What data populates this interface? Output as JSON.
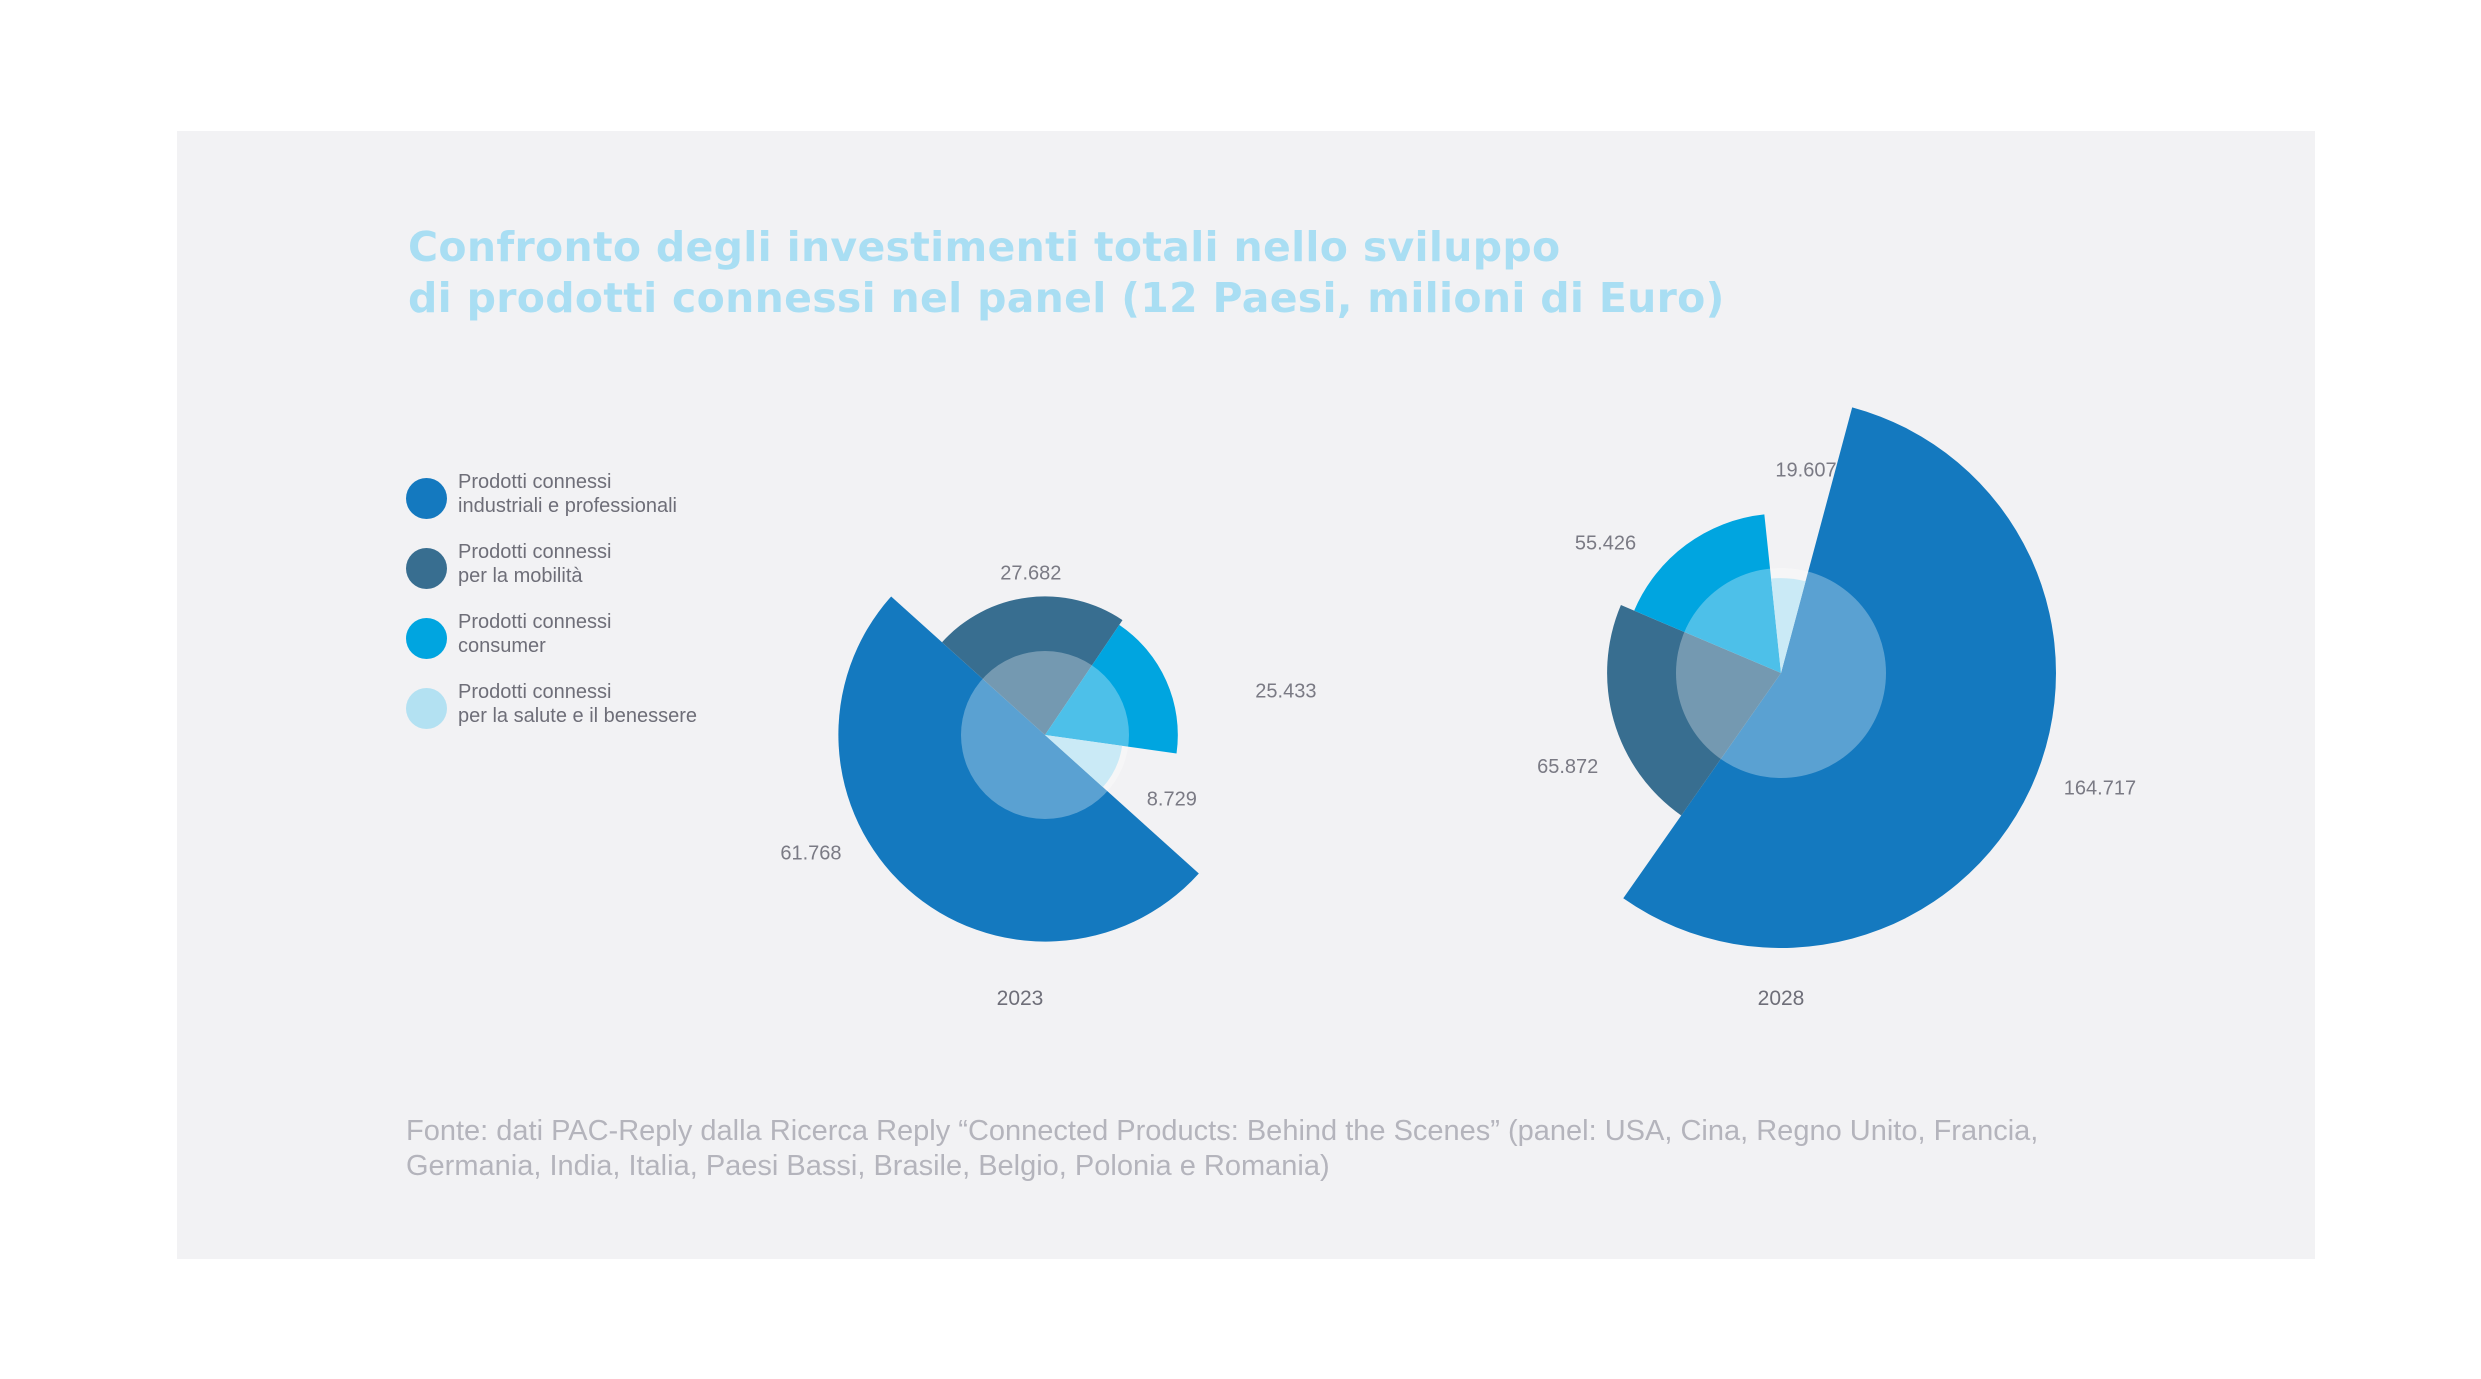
{
  "title": {
    "line1": "Confronto degli investimenti totali nello sviluppo",
    "line2": "di prodotti connessi nel panel (12 Paesi, milioni di Euro)"
  },
  "legend": [
    {
      "line1": "Prodotti connessi",
      "line2": "industriali e professionali",
      "color": "#1479bf"
    },
    {
      "line1": "Prodotti connessi",
      "line2": "per la mobilità",
      "color": "#386e90"
    },
    {
      "line1": "Prodotti connessi",
      "line2": "consumer",
      "color": "#00a5e0"
    },
    {
      "line1": "Prodotti connessi",
      "line2": "per la salute e il benessere",
      "color": "#b3e1f2"
    }
  ],
  "chart_data": [
    {
      "type": "pie",
      "subtype": "polar-area",
      "label": "2023",
      "categories": [
        "Prodotti connessi industriali e professionali",
        "Prodotti connessi per la mobilità",
        "Prodotti connessi consumer",
        "Prodotti connessi per la salute e il benessere"
      ],
      "values": [
        61768,
        27682,
        25433,
        8729
      ],
      "value_labels": [
        "61.768",
        "27.682",
        "25.433",
        "8.729"
      ],
      "colors": [
        "#1479bf",
        "#386e90",
        "#00a5e0",
        "#b3e1f2"
      ]
    },
    {
      "type": "pie",
      "subtype": "polar-area",
      "label": "2028",
      "categories": [
        "Prodotti connessi industriali e professionali",
        "Prodotti connessi per la mobilità",
        "Prodotti connessi consumer",
        "Prodotti connessi per la salute e il benessere"
      ],
      "values": [
        164717,
        65872,
        55426,
        19607
      ],
      "value_labels": [
        "164.717",
        "65.872",
        "55.426",
        "19.607"
      ],
      "colors": [
        "#1479bf",
        "#386e90",
        "#00a5e0",
        "#b3e1f2"
      ]
    }
  ],
  "source": {
    "line1": "Fonte: dati PAC-Reply dalla Ricerca Reply “Connected Products: Behind the Scenes” (panel: USA, Cina, Regno Unito, Francia,",
    "line2": "Germania, India, Italia, Paesi Bassi, Brasile, Belgio, Polonia e Romania)"
  }
}
